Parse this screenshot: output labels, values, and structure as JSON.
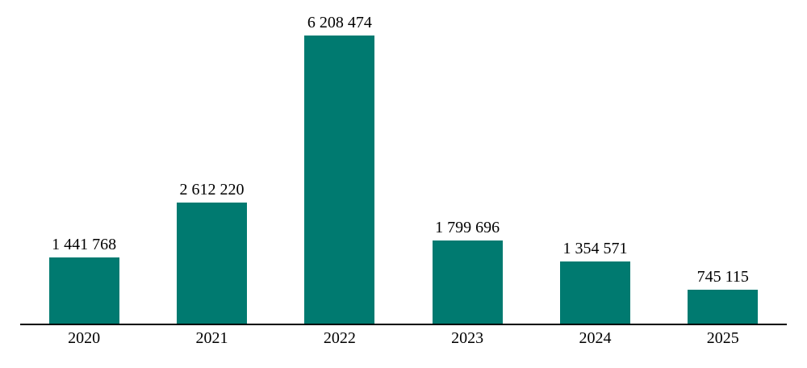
{
  "chart_data": {
    "type": "bar",
    "title": "",
    "xlabel": "",
    "ylabel": "",
    "categories": [
      "2020",
      "2021",
      "2022",
      "2023",
      "2024",
      "2025"
    ],
    "values": [
      1441768,
      2612220,
      6208474,
      1799696,
      1354571,
      745115
    ],
    "value_labels": [
      "1 441 768",
      "2 612 220",
      "6 208 474",
      "1 799 696",
      "1 354 571",
      "745 115"
    ],
    "series_count": 1,
    "legend": "none",
    "gridlines": false,
    "y_axis_visible": false,
    "ylim": [
      0,
      6208474
    ],
    "colors": {
      "bar": "#007A70",
      "axis": "#000000",
      "text": "#000000",
      "background": "#FFFFFF"
    }
  }
}
